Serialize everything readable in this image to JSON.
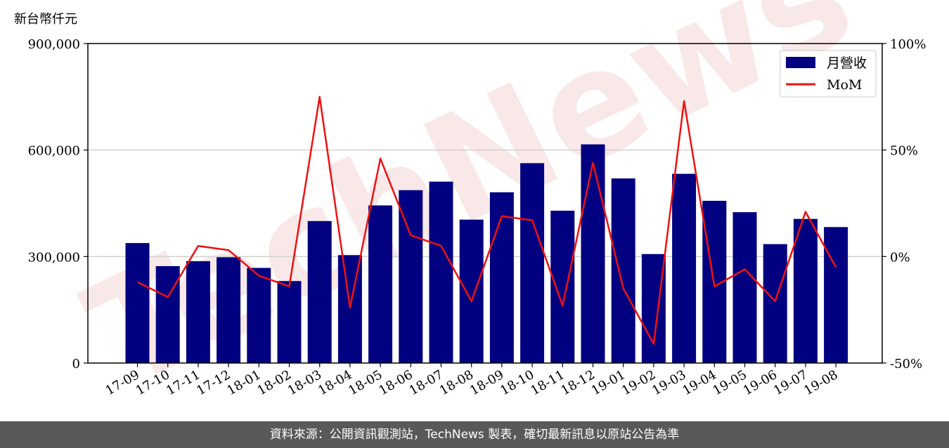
{
  "chart_data": {
    "type": "bar+line",
    "y_unit_label": "新台幣仟元",
    "categories": [
      "17-09",
      "17-10",
      "17-11",
      "17-12",
      "18-01",
      "18-02",
      "18-03",
      "18-04",
      "18-05",
      "18-06",
      "18-07",
      "18-08",
      "18-09",
      "18-10",
      "18-11",
      "18-12",
      "19-01",
      "19-02",
      "19-03",
      "19-04",
      "19-05",
      "19-06",
      "19-07",
      "19-08"
    ],
    "series": [
      {
        "name": "月營收",
        "type": "bar",
        "axis": "left",
        "color": "#000080",
        "values": [
          338000,
          273000,
          287000,
          298000,
          268000,
          231000,
          400000,
          304000,
          444000,
          487000,
          511000,
          404000,
          481000,
          563000,
          429000,
          616000,
          520000,
          307000,
          533000,
          457000,
          425000,
          335000,
          406000,
          383000
        ]
      },
      {
        "name": "MoM",
        "type": "line",
        "axis": "right",
        "color": "#ee1111",
        "values": [
          -12,
          -19,
          5,
          3,
          -9,
          -14,
          75,
          -24,
          46,
          10,
          5,
          -21,
          19,
          17,
          -23,
          44,
          -15,
          -41,
          73,
          -14,
          -6,
          -21,
          21,
          -5
        ]
      }
    ],
    "y_left": {
      "min": 0,
      "max": 900000,
      "ticks": [
        0,
        300000,
        600000,
        900000
      ],
      "tick_labels": [
        "0",
        "300,000",
        "600,000",
        "900,000"
      ]
    },
    "y_right": {
      "min": -50,
      "max": 100,
      "ticks": [
        -50,
        0,
        50,
        100
      ],
      "tick_labels": [
        "-50%",
        "0%",
        "50%",
        "100%"
      ]
    },
    "grid": "horizontal",
    "legend_position": "top-right",
    "watermark": "TechNews"
  },
  "footer": {
    "text": "資料來源：公開資訊觀測站，TechNews 製表，確切最新訊息以原站公告為準"
  }
}
